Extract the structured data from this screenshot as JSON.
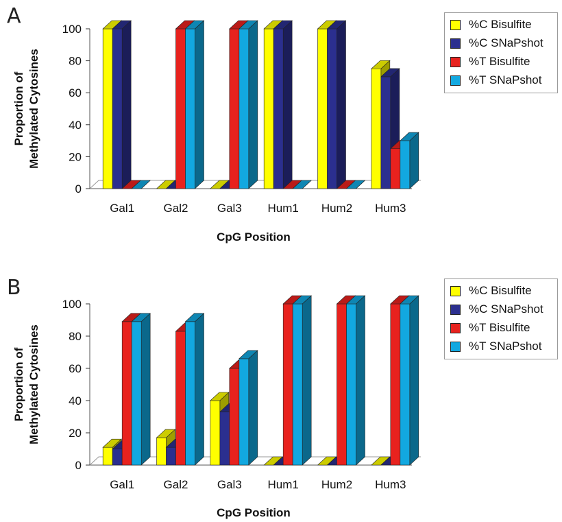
{
  "chart_data": [
    {
      "type": "bar",
      "panel_label": "A",
      "categories": [
        "Gal1",
        "Gal2",
        "Gal3",
        "Hum1",
        "Hum2",
        "Hum3"
      ],
      "series": [
        {
          "name": "%C Bisulfite",
          "color": "#ffff00",
          "values": [
            100,
            0,
            0,
            100,
            100,
            75
          ]
        },
        {
          "name": "%C SNaPshot",
          "color": "#2b2f8f",
          "values": [
            100,
            0,
            0,
            100,
            100,
            70
          ]
        },
        {
          "name": "%T Bisulfite",
          "color": "#e8221e",
          "values": [
            0,
            100,
            100,
            0,
            0,
            25
          ]
        },
        {
          "name": "%T SNaPshot",
          "color": "#12a8e0",
          "values": [
            0,
            100,
            100,
            0,
            0,
            30
          ]
        }
      ],
      "xlabel": "CpG Position",
      "ylabel": [
        "Proportion of",
        "Methylated Cytosines"
      ],
      "ylim": [
        0,
        100
      ],
      "yticks": [
        0,
        20,
        40,
        60,
        80,
        100
      ],
      "legend_position": "top-right",
      "grid": false
    },
    {
      "type": "bar",
      "panel_label": "B",
      "categories": [
        "Gal1",
        "Gal2",
        "Gal3",
        "Hum1",
        "Hum2",
        "Hum3"
      ],
      "series": [
        {
          "name": "%C Bisulfite",
          "color": "#ffff00",
          "values": [
            11,
            17,
            40,
            0,
            0,
            0
          ]
        },
        {
          "name": "%C SNaPshot",
          "color": "#2b2f8f",
          "values": [
            10,
            11,
            33,
            0,
            0,
            0
          ]
        },
        {
          "name": "%T Bisulfite",
          "color": "#e8221e",
          "values": [
            89,
            83,
            60,
            100,
            100,
            100
          ]
        },
        {
          "name": "%T SNaPshot",
          "color": "#12a8e0",
          "values": [
            89,
            89,
            66,
            100,
            100,
            100
          ]
        }
      ],
      "xlabel": "CpG Position",
      "ylabel": [
        "Proportion of",
        "Methylated Cytosines"
      ],
      "ylim": [
        0,
        100
      ],
      "yticks": [
        0,
        20,
        40,
        60,
        80,
        100
      ],
      "legend_position": "top-right",
      "grid": false
    }
  ]
}
